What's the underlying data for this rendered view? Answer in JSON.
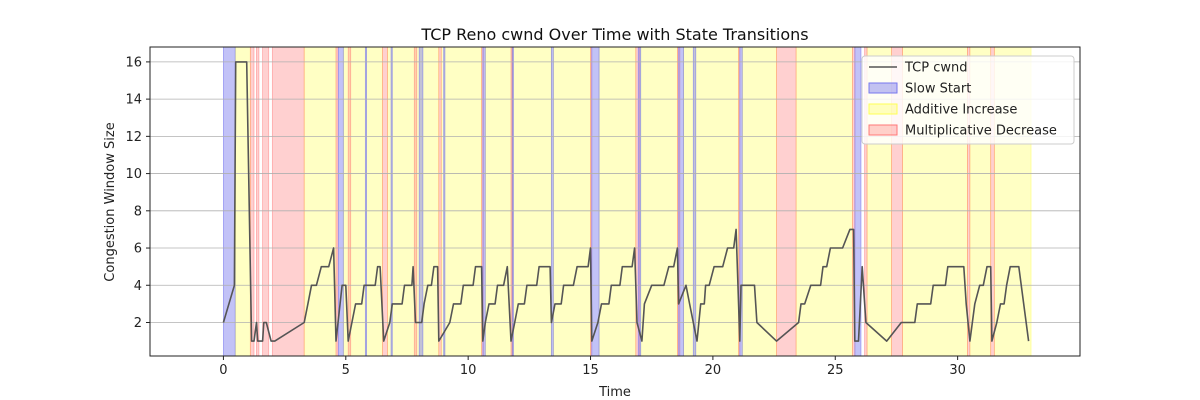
{
  "chart_data": {
    "type": "line",
    "title": "TCP Reno cwnd Over Time with State Transitions",
    "xlabel": "Time",
    "ylabel": "Congestion Window Size",
    "xlim": [
      -3,
      35
    ],
    "ylim": [
      0.2,
      16.8
    ],
    "xticks": [
      0,
      5,
      10,
      15,
      20,
      25,
      30
    ],
    "yticks": [
      2,
      4,
      6,
      8,
      10,
      12,
      14,
      16
    ],
    "grid": "y",
    "legend_position": "top-right",
    "colors": {
      "line": "#555555",
      "slow_start": "#7777ee",
      "additive_increase": "#ffff55",
      "multiplicative_decrease": "#ff7777"
    },
    "legend": [
      {
        "label": "TCP cwnd",
        "kind": "line"
      },
      {
        "label": "Slow Start",
        "kind": "slow_start"
      },
      {
        "label": "Additive Increase",
        "kind": "additive_increase"
      },
      {
        "label": "Multiplicative Decrease",
        "kind": "multiplicative_decrease"
      }
    ],
    "series": [
      {
        "name": "TCP cwnd",
        "points": [
          [
            0,
            2
          ],
          [
            0.45,
            4
          ],
          [
            0.5,
            16
          ],
          [
            0.95,
            16
          ],
          [
            1.15,
            1
          ],
          [
            1.25,
            1
          ],
          [
            1.35,
            2
          ],
          [
            1.4,
            1
          ],
          [
            1.6,
            1
          ],
          [
            1.65,
            2
          ],
          [
            1.75,
            2
          ],
          [
            1.95,
            1
          ],
          [
            2.1,
            1
          ],
          [
            3.3,
            2
          ],
          [
            3.45,
            3
          ],
          [
            3.6,
            4
          ],
          [
            3.8,
            4
          ],
          [
            4.0,
            5
          ],
          [
            4.3,
            5
          ],
          [
            4.5,
            6
          ],
          [
            4.6,
            1
          ],
          [
            4.85,
            4
          ],
          [
            5.0,
            4
          ],
          [
            5.1,
            1
          ],
          [
            5.4,
            3
          ],
          [
            5.65,
            3
          ],
          [
            5.75,
            4
          ],
          [
            6.2,
            4
          ],
          [
            6.3,
            5
          ],
          [
            6.4,
            5
          ],
          [
            6.55,
            1
          ],
          [
            6.8,
            2
          ],
          [
            6.9,
            3
          ],
          [
            7.3,
            3
          ],
          [
            7.4,
            4
          ],
          [
            7.7,
            4
          ],
          [
            7.75,
            5
          ],
          [
            7.85,
            2
          ],
          [
            8.1,
            2
          ],
          [
            8.2,
            3
          ],
          [
            8.35,
            4
          ],
          [
            8.5,
            4
          ],
          [
            8.6,
            5
          ],
          [
            8.75,
            5
          ],
          [
            8.8,
            1
          ],
          [
            9.25,
            2
          ],
          [
            9.4,
            3
          ],
          [
            9.7,
            3
          ],
          [
            9.8,
            4
          ],
          [
            10.2,
            4
          ],
          [
            10.3,
            5
          ],
          [
            10.55,
            5
          ],
          [
            10.6,
            1
          ],
          [
            10.7,
            2
          ],
          [
            10.85,
            3
          ],
          [
            11.1,
            3
          ],
          [
            11.2,
            4
          ],
          [
            11.45,
            4
          ],
          [
            11.6,
            5
          ],
          [
            11.75,
            1
          ],
          [
            11.9,
            2
          ],
          [
            12.05,
            3
          ],
          [
            12.3,
            3
          ],
          [
            12.4,
            4
          ],
          [
            12.8,
            4
          ],
          [
            12.9,
            5
          ],
          [
            13.35,
            5
          ],
          [
            13.4,
            2
          ],
          [
            13.55,
            3
          ],
          [
            13.8,
            3
          ],
          [
            13.9,
            4
          ],
          [
            14.3,
            4
          ],
          [
            14.45,
            5
          ],
          [
            14.9,
            5
          ],
          [
            15.0,
            6
          ],
          [
            15.05,
            1
          ],
          [
            15.3,
            2
          ],
          [
            15.45,
            3
          ],
          [
            15.75,
            3
          ],
          [
            15.85,
            4
          ],
          [
            16.2,
            4
          ],
          [
            16.3,
            5
          ],
          [
            16.7,
            5
          ],
          [
            16.8,
            6
          ],
          [
            16.9,
            2
          ],
          [
            17.1,
            1
          ],
          [
            17.2,
            3
          ],
          [
            17.5,
            4
          ],
          [
            18.0,
            4
          ],
          [
            18.2,
            5
          ],
          [
            18.4,
            5
          ],
          [
            18.55,
            6
          ],
          [
            18.6,
            3
          ],
          [
            18.9,
            4
          ],
          [
            19.05,
            3
          ],
          [
            19.2,
            2
          ],
          [
            19.35,
            1
          ],
          [
            19.5,
            3
          ],
          [
            19.65,
            3
          ],
          [
            19.7,
            4
          ],
          [
            19.85,
            4
          ],
          [
            20.05,
            5
          ],
          [
            20.4,
            5
          ],
          [
            20.6,
            6
          ],
          [
            20.85,
            6
          ],
          [
            20.95,
            7
          ],
          [
            21.1,
            1
          ],
          [
            21.15,
            4
          ],
          [
            21.7,
            4
          ],
          [
            21.8,
            2
          ],
          [
            22.6,
            1
          ],
          [
            23.5,
            2
          ],
          [
            23.6,
            3
          ],
          [
            23.75,
            3
          ],
          [
            24.0,
            4
          ],
          [
            24.4,
            4
          ],
          [
            24.5,
            5
          ],
          [
            24.65,
            5
          ],
          [
            24.8,
            6
          ],
          [
            25.3,
            6
          ],
          [
            25.6,
            7
          ],
          [
            25.75,
            7
          ],
          [
            25.8,
            1
          ],
          [
            25.95,
            1
          ],
          [
            26.1,
            5
          ],
          [
            26.25,
            2
          ],
          [
            27.1,
            1
          ],
          [
            27.7,
            2
          ],
          [
            28.25,
            2
          ],
          [
            28.35,
            3
          ],
          [
            28.9,
            3
          ],
          [
            29.0,
            4
          ],
          [
            29.5,
            4
          ],
          [
            29.6,
            5
          ],
          [
            30.25,
            5
          ],
          [
            30.35,
            3
          ],
          [
            30.5,
            1
          ],
          [
            30.7,
            3
          ],
          [
            30.9,
            4
          ],
          [
            31.05,
            4
          ],
          [
            31.2,
            5
          ],
          [
            31.35,
            5
          ],
          [
            31.4,
            1
          ],
          [
            31.6,
            2
          ],
          [
            31.75,
            3
          ],
          [
            31.9,
            3
          ],
          [
            32.0,
            4
          ],
          [
            32.15,
            5
          ],
          [
            32.5,
            5
          ],
          [
            32.9,
            1
          ]
        ]
      }
    ],
    "state_regions": {
      "slow_start": [
        [
          0.0,
          0.48
        ],
        [
          4.7,
          4.9
        ],
        [
          5.8,
          5.85
        ],
        [
          6.85,
          6.9
        ],
        [
          8.0,
          8.15
        ],
        [
          9.0,
          9.05
        ],
        [
          10.6,
          10.7
        ],
        [
          11.8,
          11.85
        ],
        [
          13.4,
          13.48
        ],
        [
          15.05,
          15.35
        ],
        [
          16.95,
          17.05
        ],
        [
          18.6,
          18.8
        ],
        [
          19.2,
          19.3
        ],
        [
          21.1,
          21.2
        ],
        [
          25.8,
          26.05
        ]
      ],
      "multiplicative_decrease": [
        [
          1.1,
          1.25
        ],
        [
          1.35,
          1.45
        ],
        [
          1.6,
          1.85
        ],
        [
          2.0,
          3.3
        ],
        [
          4.6,
          4.68
        ],
        [
          5.1,
          5.2
        ],
        [
          6.5,
          6.7
        ],
        [
          7.8,
          7.9
        ],
        [
          8.8,
          8.9
        ],
        [
          10.55,
          10.62
        ],
        [
          11.75,
          11.82
        ],
        [
          15.0,
          15.05
        ],
        [
          16.85,
          17.0
        ],
        [
          18.55,
          18.65
        ],
        [
          21.05,
          21.1
        ],
        [
          22.6,
          23.4
        ],
        [
          25.7,
          25.8
        ],
        [
          26.2,
          26.3
        ],
        [
          27.3,
          27.75
        ],
        [
          30.4,
          30.5
        ],
        [
          31.35,
          31.5
        ]
      ],
      "additive_increase": [
        [
          0.5,
          1.1
        ],
        [
          3.3,
          4.6
        ],
        [
          4.9,
          6.5
        ],
        [
          6.7,
          8.8
        ],
        [
          8.9,
          10.55
        ],
        [
          10.7,
          13.4
        ],
        [
          13.48,
          15.0
        ],
        [
          15.35,
          16.85
        ],
        [
          17.05,
          18.55
        ],
        [
          18.8,
          21.05
        ],
        [
          21.2,
          22.6
        ],
        [
          23.4,
          25.7
        ],
        [
          26.3,
          27.3
        ],
        [
          27.75,
          30.4
        ],
        [
          30.5,
          31.35
        ],
        [
          31.5,
          33.0
        ]
      ]
    }
  }
}
